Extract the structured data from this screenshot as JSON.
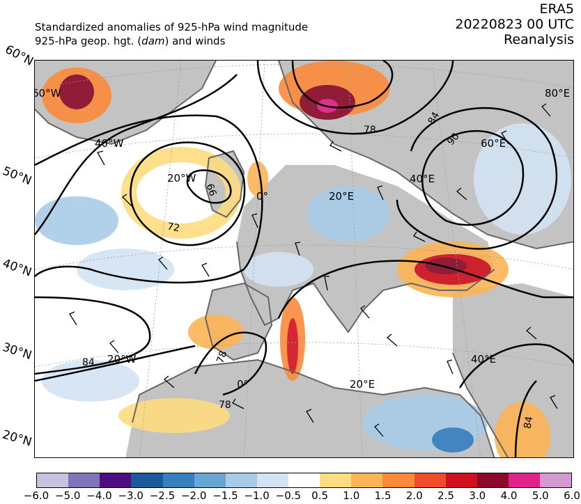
{
  "header": {
    "title_line1": "Standardized anomalies of 925-hPa wind magnitude",
    "title_line2_pre": "925-hPa geop. hgt. (",
    "title_line2_unit": "dam",
    "title_line2_post": ") and winds",
    "source": "ERA5",
    "datetime": "20220823 00 UTC",
    "product": "Reanalysis"
  },
  "map": {
    "lat_edge_labels": [
      "60°N",
      "50°N",
      "40°N",
      "30°N",
      "20°N"
    ],
    "grid_labels": [
      "60°W",
      "40°W",
      "20°W",
      "0°",
      "20°E",
      "40°E",
      "60°E",
      "80°E",
      "20°W",
      "0°",
      "20°E",
      "40°E"
    ],
    "contour_labels": [
      "66",
      "72",
      "78",
      "84",
      "90",
      "84",
      "78",
      "78",
      "84"
    ],
    "colors": {
      "land": "#c3c3c3",
      "ocean": "#ffffff",
      "coast": "#666666",
      "contour": "#000000"
    }
  },
  "colorbar": {
    "colors": [
      "#c6c3e0",
      "#8272b9",
      "#4e0d80",
      "#1a5a9c",
      "#3680bf",
      "#6aa6d3",
      "#a9cbe7",
      "#d3e3f3",
      "#ffffff",
      "#fedd80",
      "#fdb456",
      "#fc8a3b",
      "#f04b2a",
      "#d0101e",
      "#8b0a2a",
      "#e0228a",
      "#d29ad0"
    ],
    "tick_labels": [
      "−6.0",
      "−5.0",
      "−4.0",
      "−3.0",
      "−2.5",
      "−2.0",
      "−1.5",
      "−1.0",
      "−0.5",
      "0.5",
      "1.0",
      "1.5",
      "2.0",
      "2.5",
      "3.0",
      "4.0",
      "5.0",
      "6.0"
    ]
  }
}
